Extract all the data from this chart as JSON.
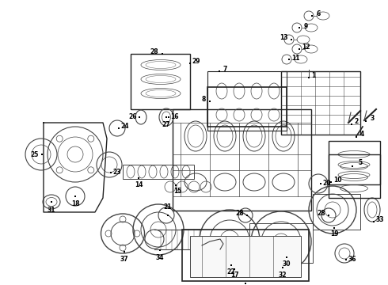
{
  "bg": "#ffffff",
  "lc": "#444444",
  "lc2": "#222222",
  "label_fs": 5.5,
  "fw": 4.9,
  "fh": 3.6,
  "dpi": 100
}
